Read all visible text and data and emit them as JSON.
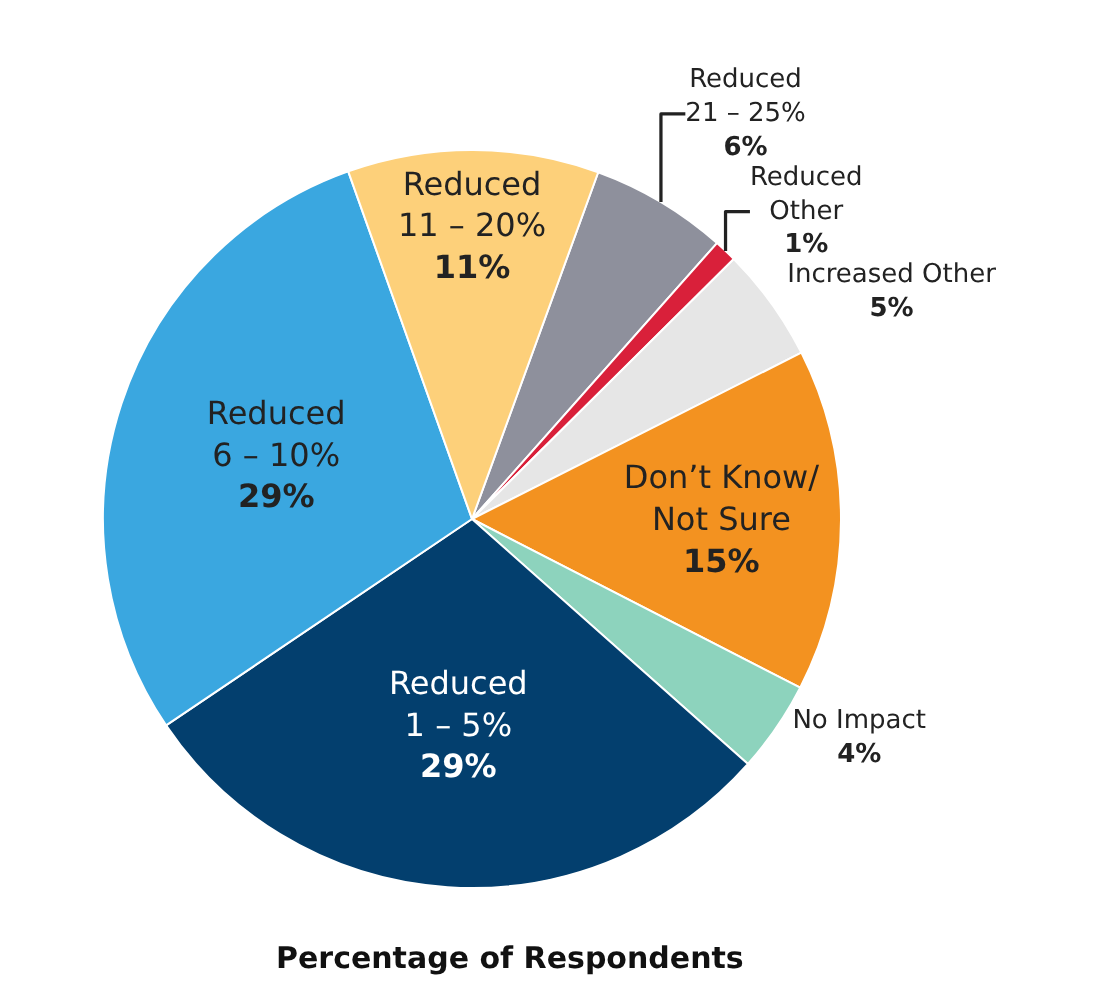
{
  "chart_data": {
    "type": "pie",
    "title": "Percentage of Respondents",
    "categories": [
      "Reduced 21 – 25%",
      "Reduced Other",
      "Increased Other",
      "Don’t Know/ Not Sure",
      "No Impact",
      "Reduced 1 – 5%",
      "Reduced 6 – 10%",
      "Reduced 11 – 20%"
    ],
    "values": [
      6,
      1,
      5,
      15,
      4,
      29,
      29,
      11
    ],
    "value_labels": [
      "6%",
      "1%",
      "5%",
      "15%",
      "4%",
      "29%",
      "29%",
      "11%"
    ],
    "colors": [
      "#8e909c",
      "#d9203a",
      "#e6e6e6",
      "#f39220",
      "#8dd3bd",
      "#033f6e",
      "#3aa7e0",
      "#fdd07a"
    ]
  }
}
